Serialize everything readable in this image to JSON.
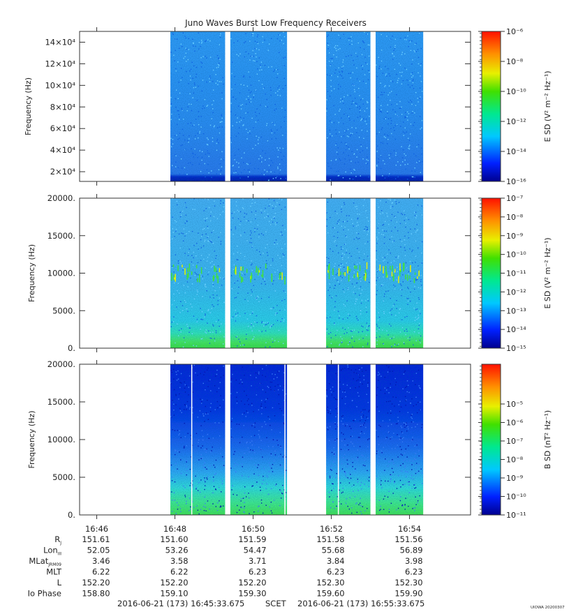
{
  "title": "Juno Waves Burst Low Frequency Receivers",
  "footer": {
    "start": "2016-06-21 (173) 16:45:33.675",
    "scet": "SCET",
    "end": "2016-06-21 (173) 16:55:33.675",
    "stamp": "UIOWA 20200307"
  },
  "ephemeris": {
    "time_labels": [
      "16:46",
      "16:48",
      "16:50",
      "16:52",
      "16:54"
    ],
    "rows": [
      {
        "label": "R",
        "sub": "J",
        "values": [
          "151.61",
          "151.60",
          "151.59",
          "151.58",
          "151.56"
        ]
      },
      {
        "label": "Lon",
        "sub": "III",
        "values": [
          "52.05",
          "53.26",
          "54.47",
          "55.68",
          "56.89"
        ]
      },
      {
        "label": "MLat",
        "sub": "JRM09",
        "values": [
          "3.46",
          "3.58",
          "3.71",
          "3.84",
          "3.98"
        ]
      },
      {
        "label": "MLT",
        "sub": "",
        "values": [
          "6.22",
          "6.22",
          "6.23",
          "6.23",
          "6.23"
        ]
      },
      {
        "label": "L",
        "sub": "",
        "values": [
          "152.20",
          "152.20",
          "152.20",
          "152.30",
          "152.30"
        ]
      },
      {
        "label": "Io Phase",
        "sub": "",
        "values": [
          "158.80",
          "159.10",
          "159.30",
          "159.60",
          "159.90"
        ]
      }
    ]
  },
  "chart_data": [
    {
      "type": "heatmap",
      "ylabel": "Frequency (Hz)",
      "ylim": [
        11000,
        150000
      ],
      "yticks": [
        20000,
        40000,
        60000,
        80000,
        100000,
        120000,
        140000
      ],
      "ytick_labels": [
        "2×10⁴",
        "4×10⁴",
        "6×10⁴",
        "8×10⁴",
        "10×10⁴",
        "12×10⁴",
        "14×10⁴"
      ],
      "colorbar": {
        "label": "E SD (V² m⁻² Hz⁻¹)",
        "ticks": [
          "10⁻⁶",
          "10⁻⁸",
          "10⁻¹⁰",
          "10⁻¹²",
          "10⁻¹⁴",
          "10⁻¹⁶"
        ]
      },
      "data_segments": [
        [
          "16:47:53",
          "16:49:17"
        ],
        [
          "16:49:25",
          "16:50:52"
        ],
        [
          "16:51:52",
          "16:53:00"
        ],
        [
          "16:53:08",
          "16:54:21"
        ]
      ],
      "dominant_color": "#2f9cff",
      "low_freq_band_color": "#0033cc"
    },
    {
      "type": "heatmap",
      "ylabel": "Frequency (Hz)",
      "ylim": [
        0,
        20000
      ],
      "yticks": [
        0,
        5000,
        10000,
        15000,
        20000
      ],
      "ytick_labels": [
        "0.",
        "5000.",
        "10000.",
        "15000.",
        "20000."
      ],
      "colorbar": {
        "label": "E SD (V² m⁻² Hz⁻¹)",
        "ticks": [
          "10⁻⁷",
          "10⁻⁸",
          "10⁻⁹",
          "10⁻¹⁰",
          "10⁻¹¹",
          "10⁻¹²",
          "10⁻¹³",
          "10⁻¹⁴",
          "10⁻¹⁵"
        ]
      },
      "data_segments": [
        [
          "16:47:53",
          "16:49:17"
        ],
        [
          "16:49:25",
          "16:50:52"
        ],
        [
          "16:51:52",
          "16:53:00"
        ],
        [
          "16:53:08",
          "16:54:21"
        ]
      ],
      "dominant_color": "#3ab8f0",
      "emission_band_hz": [
        9000,
        11000
      ],
      "low_freq_band_color": "#40e040"
    },
    {
      "type": "heatmap",
      "ylabel": "Frequency (Hz)",
      "ylim": [
        0,
        20000
      ],
      "yticks": [
        0,
        5000,
        10000,
        15000,
        20000
      ],
      "ytick_labels": [
        "0.",
        "5000.",
        "10000.",
        "15000.",
        "20000."
      ],
      "colorbar": {
        "label": "B SD (nT² Hz⁻¹)",
        "ticks": [
          "10⁻⁵",
          "10⁻⁶",
          "10⁻⁷",
          "10⁻⁸",
          "10⁻⁹",
          "10⁻¹⁰",
          "10⁻¹¹"
        ]
      },
      "data_segments": [
        [
          "16:47:53",
          "16:49:17"
        ],
        [
          "16:49:25",
          "16:50:52"
        ],
        [
          "16:51:52",
          "16:53:00"
        ],
        [
          "16:53:08",
          "16:54:21"
        ]
      ],
      "dominant_color": "#0a2fd8",
      "low_freq_band_color": "#30e060"
    }
  ],
  "colors": {
    "axis": "#333333",
    "background": "#ffffff"
  }
}
